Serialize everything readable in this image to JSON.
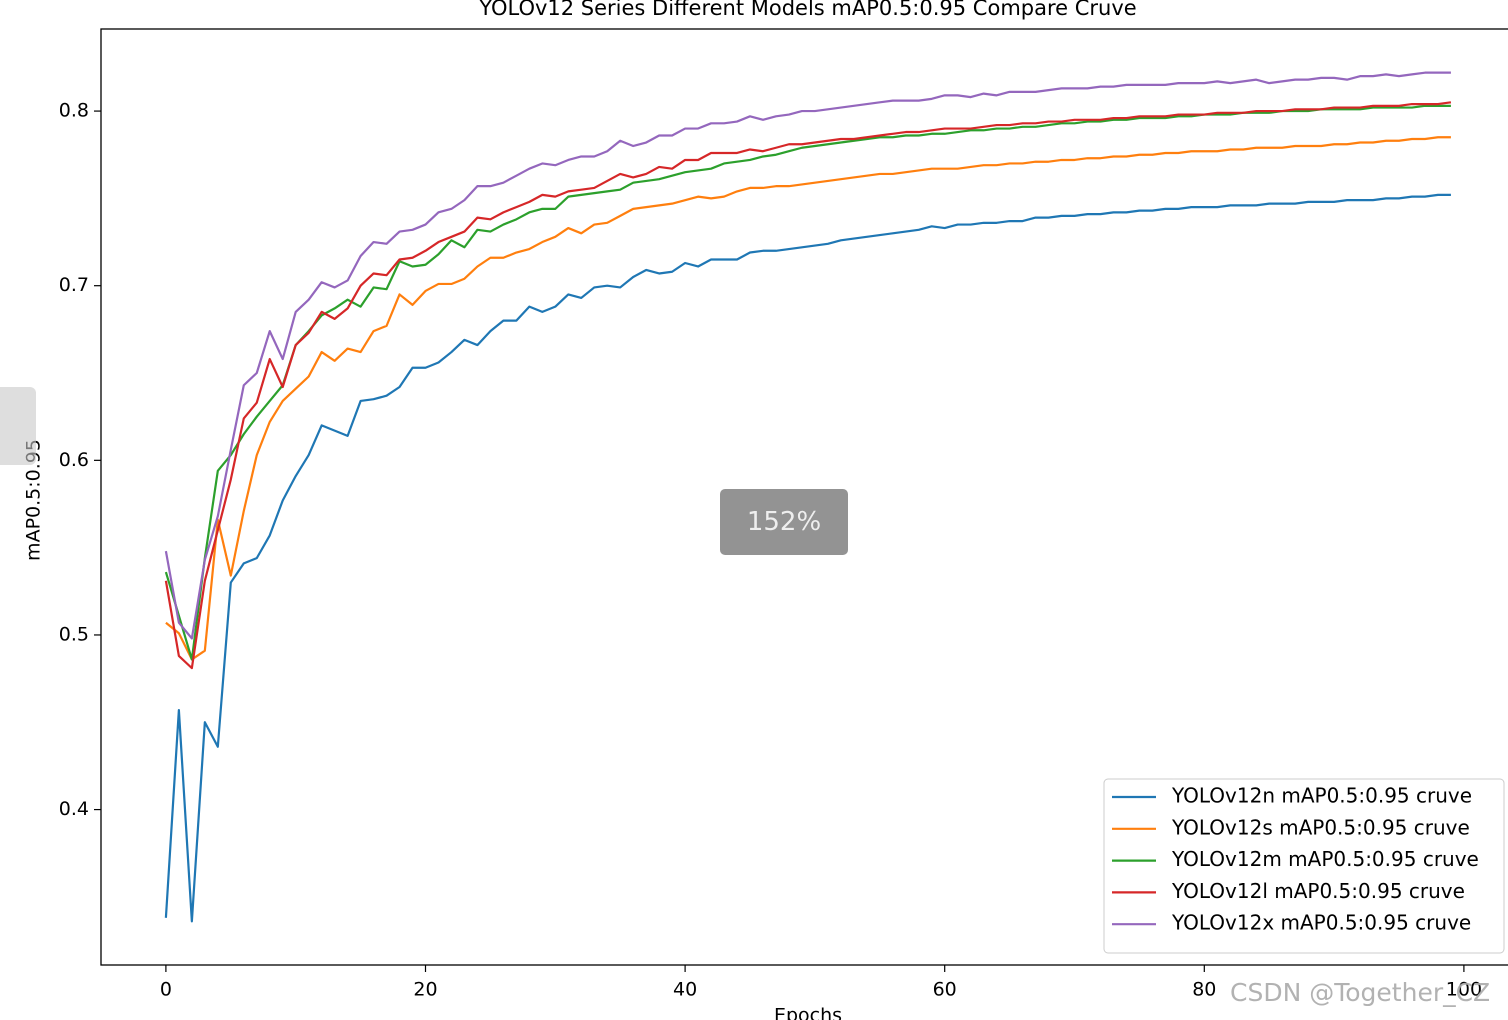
{
  "chart_data": {
    "type": "line",
    "title": "YOLOv12 Series Different Models mAP0.5:0.95 Compare Cruve",
    "xlabel": "Epochs",
    "ylabel": "mAP0.5:0.95",
    "x": [
      0,
      1,
      2,
      3,
      4,
      5,
      6,
      7,
      8,
      9,
      10,
      11,
      12,
      13,
      14,
      15,
      16,
      17,
      18,
      19,
      20,
      21,
      22,
      23,
      24,
      25,
      26,
      27,
      28,
      29,
      30,
      31,
      32,
      33,
      34,
      35,
      36,
      37,
      38,
      39,
      40,
      41,
      42,
      43,
      44,
      45,
      46,
      47,
      48,
      49,
      50,
      51,
      52,
      53,
      54,
      55,
      56,
      57,
      58,
      59,
      60,
      61,
      62,
      63,
      64,
      65,
      66,
      67,
      68,
      69,
      70,
      71,
      72,
      73,
      74,
      75,
      76,
      77,
      78,
      79,
      80,
      81,
      82,
      83,
      84,
      85,
      86,
      87,
      88,
      89,
      90,
      91,
      92,
      93,
      94,
      95,
      96,
      97,
      98,
      99
    ],
    "series": [
      {
        "name": "YOLOv12n mAP0.5:0.95 cruve",
        "color": "#1f77b4",
        "values": [
          0.338,
          0.457,
          0.336,
          0.45,
          0.436,
          0.53,
          0.541,
          0.544,
          0.557,
          0.577,
          0.591,
          0.603,
          0.62,
          0.617,
          0.614,
          0.634,
          0.635,
          0.637,
          0.642,
          0.653,
          0.653,
          0.656,
          0.662,
          0.669,
          0.666,
          0.674,
          0.68,
          0.68,
          0.688,
          0.685,
          0.688,
          0.695,
          0.693,
          0.699,
          0.7,
          0.699,
          0.705,
          0.709,
          0.707,
          0.708,
          0.713,
          0.711,
          0.715,
          0.715,
          0.715,
          0.719,
          0.72,
          0.72,
          0.721,
          0.722,
          0.723,
          0.724,
          0.726,
          0.727,
          0.728,
          0.729,
          0.73,
          0.731,
          0.732,
          0.734,
          0.733,
          0.735,
          0.735,
          0.736,
          0.736,
          0.737,
          0.737,
          0.739,
          0.739,
          0.74,
          0.74,
          0.741,
          0.741,
          0.742,
          0.742,
          0.743,
          0.743,
          0.744,
          0.744,
          0.745,
          0.745,
          0.745,
          0.746,
          0.746,
          0.746,
          0.747,
          0.747,
          0.747,
          0.748,
          0.748,
          0.748,
          0.749,
          0.749,
          0.749,
          0.75,
          0.75,
          0.751,
          0.751,
          0.752,
          0.752
        ]
      },
      {
        "name": "YOLOv12s mAP0.5:0.95 cruve",
        "color": "#ff7f0e",
        "values": [
          0.507,
          0.501,
          0.486,
          0.491,
          0.566,
          0.534,
          0.571,
          0.603,
          0.622,
          0.634,
          0.641,
          0.648,
          0.662,
          0.657,
          0.664,
          0.662,
          0.674,
          0.677,
          0.695,
          0.689,
          0.697,
          0.701,
          0.701,
          0.704,
          0.711,
          0.716,
          0.716,
          0.719,
          0.721,
          0.725,
          0.728,
          0.733,
          0.73,
          0.735,
          0.736,
          0.74,
          0.744,
          0.745,
          0.746,
          0.747,
          0.749,
          0.751,
          0.75,
          0.751,
          0.754,
          0.756,
          0.756,
          0.757,
          0.757,
          0.758,
          0.759,
          0.76,
          0.761,
          0.762,
          0.763,
          0.764,
          0.764,
          0.765,
          0.766,
          0.767,
          0.767,
          0.767,
          0.768,
          0.769,
          0.769,
          0.77,
          0.77,
          0.771,
          0.771,
          0.772,
          0.772,
          0.773,
          0.773,
          0.774,
          0.774,
          0.775,
          0.775,
          0.776,
          0.776,
          0.777,
          0.777,
          0.777,
          0.778,
          0.778,
          0.779,
          0.779,
          0.779,
          0.78,
          0.78,
          0.78,
          0.781,
          0.781,
          0.782,
          0.782,
          0.783,
          0.783,
          0.784,
          0.784,
          0.785,
          0.785
        ]
      },
      {
        "name": "YOLOv12m mAP0.5:0.95 cruve",
        "color": "#2ca02c",
        "values": [
          0.536,
          0.511,
          0.486,
          0.544,
          0.594,
          0.603,
          0.615,
          0.625,
          0.634,
          0.643,
          0.666,
          0.674,
          0.683,
          0.687,
          0.692,
          0.688,
          0.699,
          0.698,
          0.714,
          0.711,
          0.712,
          0.718,
          0.726,
          0.722,
          0.732,
          0.731,
          0.735,
          0.738,
          0.742,
          0.744,
          0.744,
          0.751,
          0.752,
          0.753,
          0.754,
          0.755,
          0.759,
          0.76,
          0.761,
          0.763,
          0.765,
          0.766,
          0.767,
          0.77,
          0.771,
          0.772,
          0.774,
          0.775,
          0.777,
          0.779,
          0.78,
          0.781,
          0.782,
          0.783,
          0.784,
          0.785,
          0.785,
          0.786,
          0.786,
          0.787,
          0.787,
          0.788,
          0.789,
          0.789,
          0.79,
          0.79,
          0.791,
          0.791,
          0.792,
          0.793,
          0.793,
          0.794,
          0.794,
          0.795,
          0.795,
          0.796,
          0.796,
          0.796,
          0.797,
          0.797,
          0.798,
          0.798,
          0.798,
          0.799,
          0.799,
          0.799,
          0.8,
          0.8,
          0.8,
          0.801,
          0.801,
          0.801,
          0.801,
          0.802,
          0.802,
          0.802,
          0.802,
          0.803,
          0.803,
          0.803
        ]
      },
      {
        "name": "YOLOv12l mAP0.5:0.95 cruve",
        "color": "#d62728",
        "values": [
          0.531,
          0.488,
          0.481,
          0.531,
          0.56,
          0.589,
          0.624,
          0.633,
          0.658,
          0.642,
          0.666,
          0.673,
          0.685,
          0.681,
          0.687,
          0.7,
          0.707,
          0.706,
          0.715,
          0.716,
          0.72,
          0.725,
          0.728,
          0.731,
          0.739,
          0.738,
          0.742,
          0.745,
          0.748,
          0.752,
          0.751,
          0.754,
          0.755,
          0.756,
          0.76,
          0.764,
          0.762,
          0.764,
          0.768,
          0.767,
          0.772,
          0.772,
          0.776,
          0.776,
          0.776,
          0.778,
          0.777,
          0.779,
          0.781,
          0.781,
          0.782,
          0.783,
          0.784,
          0.784,
          0.785,
          0.786,
          0.787,
          0.788,
          0.788,
          0.789,
          0.79,
          0.79,
          0.79,
          0.791,
          0.792,
          0.792,
          0.793,
          0.793,
          0.794,
          0.794,
          0.795,
          0.795,
          0.795,
          0.796,
          0.796,
          0.797,
          0.797,
          0.797,
          0.798,
          0.798,
          0.798,
          0.799,
          0.799,
          0.799,
          0.8,
          0.8,
          0.8,
          0.801,
          0.801,
          0.801,
          0.802,
          0.802,
          0.802,
          0.803,
          0.803,
          0.803,
          0.804,
          0.804,
          0.804,
          0.805
        ]
      },
      {
        "name": "YOLOv12x mAP0.5:0.95 cruve",
        "color": "#9467bd",
        "values": [
          0.548,
          0.507,
          0.498,
          0.543,
          0.568,
          0.606,
          0.643,
          0.65,
          0.674,
          0.658,
          0.685,
          0.692,
          0.702,
          0.699,
          0.703,
          0.717,
          0.725,
          0.724,
          0.731,
          0.732,
          0.735,
          0.742,
          0.744,
          0.749,
          0.757,
          0.757,
          0.759,
          0.763,
          0.767,
          0.77,
          0.769,
          0.772,
          0.774,
          0.774,
          0.777,
          0.783,
          0.78,
          0.782,
          0.786,
          0.786,
          0.79,
          0.79,
          0.793,
          0.793,
          0.794,
          0.797,
          0.795,
          0.797,
          0.798,
          0.8,
          0.8,
          0.801,
          0.802,
          0.803,
          0.804,
          0.805,
          0.806,
          0.806,
          0.806,
          0.807,
          0.809,
          0.809,
          0.808,
          0.81,
          0.809,
          0.811,
          0.811,
          0.811,
          0.812,
          0.813,
          0.813,
          0.813,
          0.814,
          0.814,
          0.815,
          0.815,
          0.815,
          0.815,
          0.816,
          0.816,
          0.816,
          0.817,
          0.816,
          0.817,
          0.818,
          0.816,
          0.817,
          0.818,
          0.818,
          0.819,
          0.819,
          0.818,
          0.82,
          0.82,
          0.821,
          0.82,
          0.821,
          0.822,
          0.822,
          0.822
        ]
      }
    ],
    "xlim": [
      -5,
      104
    ],
    "ylim": [
      0.311,
      0.847
    ],
    "xticks": [
      0,
      20,
      40,
      60,
      80,
      100
    ],
    "yticks": [
      0.4,
      0.5,
      0.6,
      0.7,
      0.8
    ],
    "grid": false,
    "legend": "lower right"
  },
  "overlay": {
    "zoom": "152%",
    "watermark": "CSDN @Together_CZ"
  }
}
